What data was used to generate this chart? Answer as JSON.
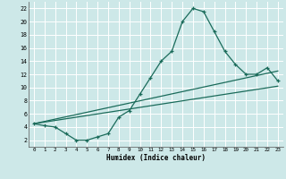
{
  "title": "",
  "xlabel": "Humidex (Indice chaleur)",
  "bg_color": "#cde8e8",
  "grid_color": "#ffffff",
  "line_color": "#1a6b5a",
  "xlim": [
    -0.5,
    23.5
  ],
  "ylim": [
    1,
    23
  ],
  "xticks": [
    0,
    1,
    2,
    3,
    4,
    5,
    6,
    7,
    8,
    9,
    10,
    11,
    12,
    13,
    14,
    15,
    16,
    17,
    18,
    19,
    20,
    21,
    22,
    23
  ],
  "yticks": [
    2,
    4,
    6,
    8,
    10,
    12,
    14,
    16,
    18,
    20,
    22
  ],
  "curve1_x": [
    0,
    1,
    2,
    3,
    4,
    5,
    6,
    7,
    8,
    9,
    10,
    11,
    12,
    13,
    14,
    15,
    16,
    17,
    18,
    19,
    20,
    21,
    22,
    23
  ],
  "curve1_y": [
    4.5,
    4.2,
    4.0,
    3.0,
    2.0,
    2.0,
    2.5,
    3.0,
    5.5,
    6.5,
    9.0,
    11.5,
    14.0,
    15.5,
    20.0,
    22.0,
    21.5,
    18.5,
    15.5,
    13.5,
    12.0,
    12.0,
    13.0,
    11.0
  ],
  "curve2_x": [
    0,
    23
  ],
  "curve2_y": [
    4.5,
    10.2
  ],
  "curve3_x": [
    0,
    23
  ],
  "curve3_y": [
    4.5,
    12.5
  ]
}
